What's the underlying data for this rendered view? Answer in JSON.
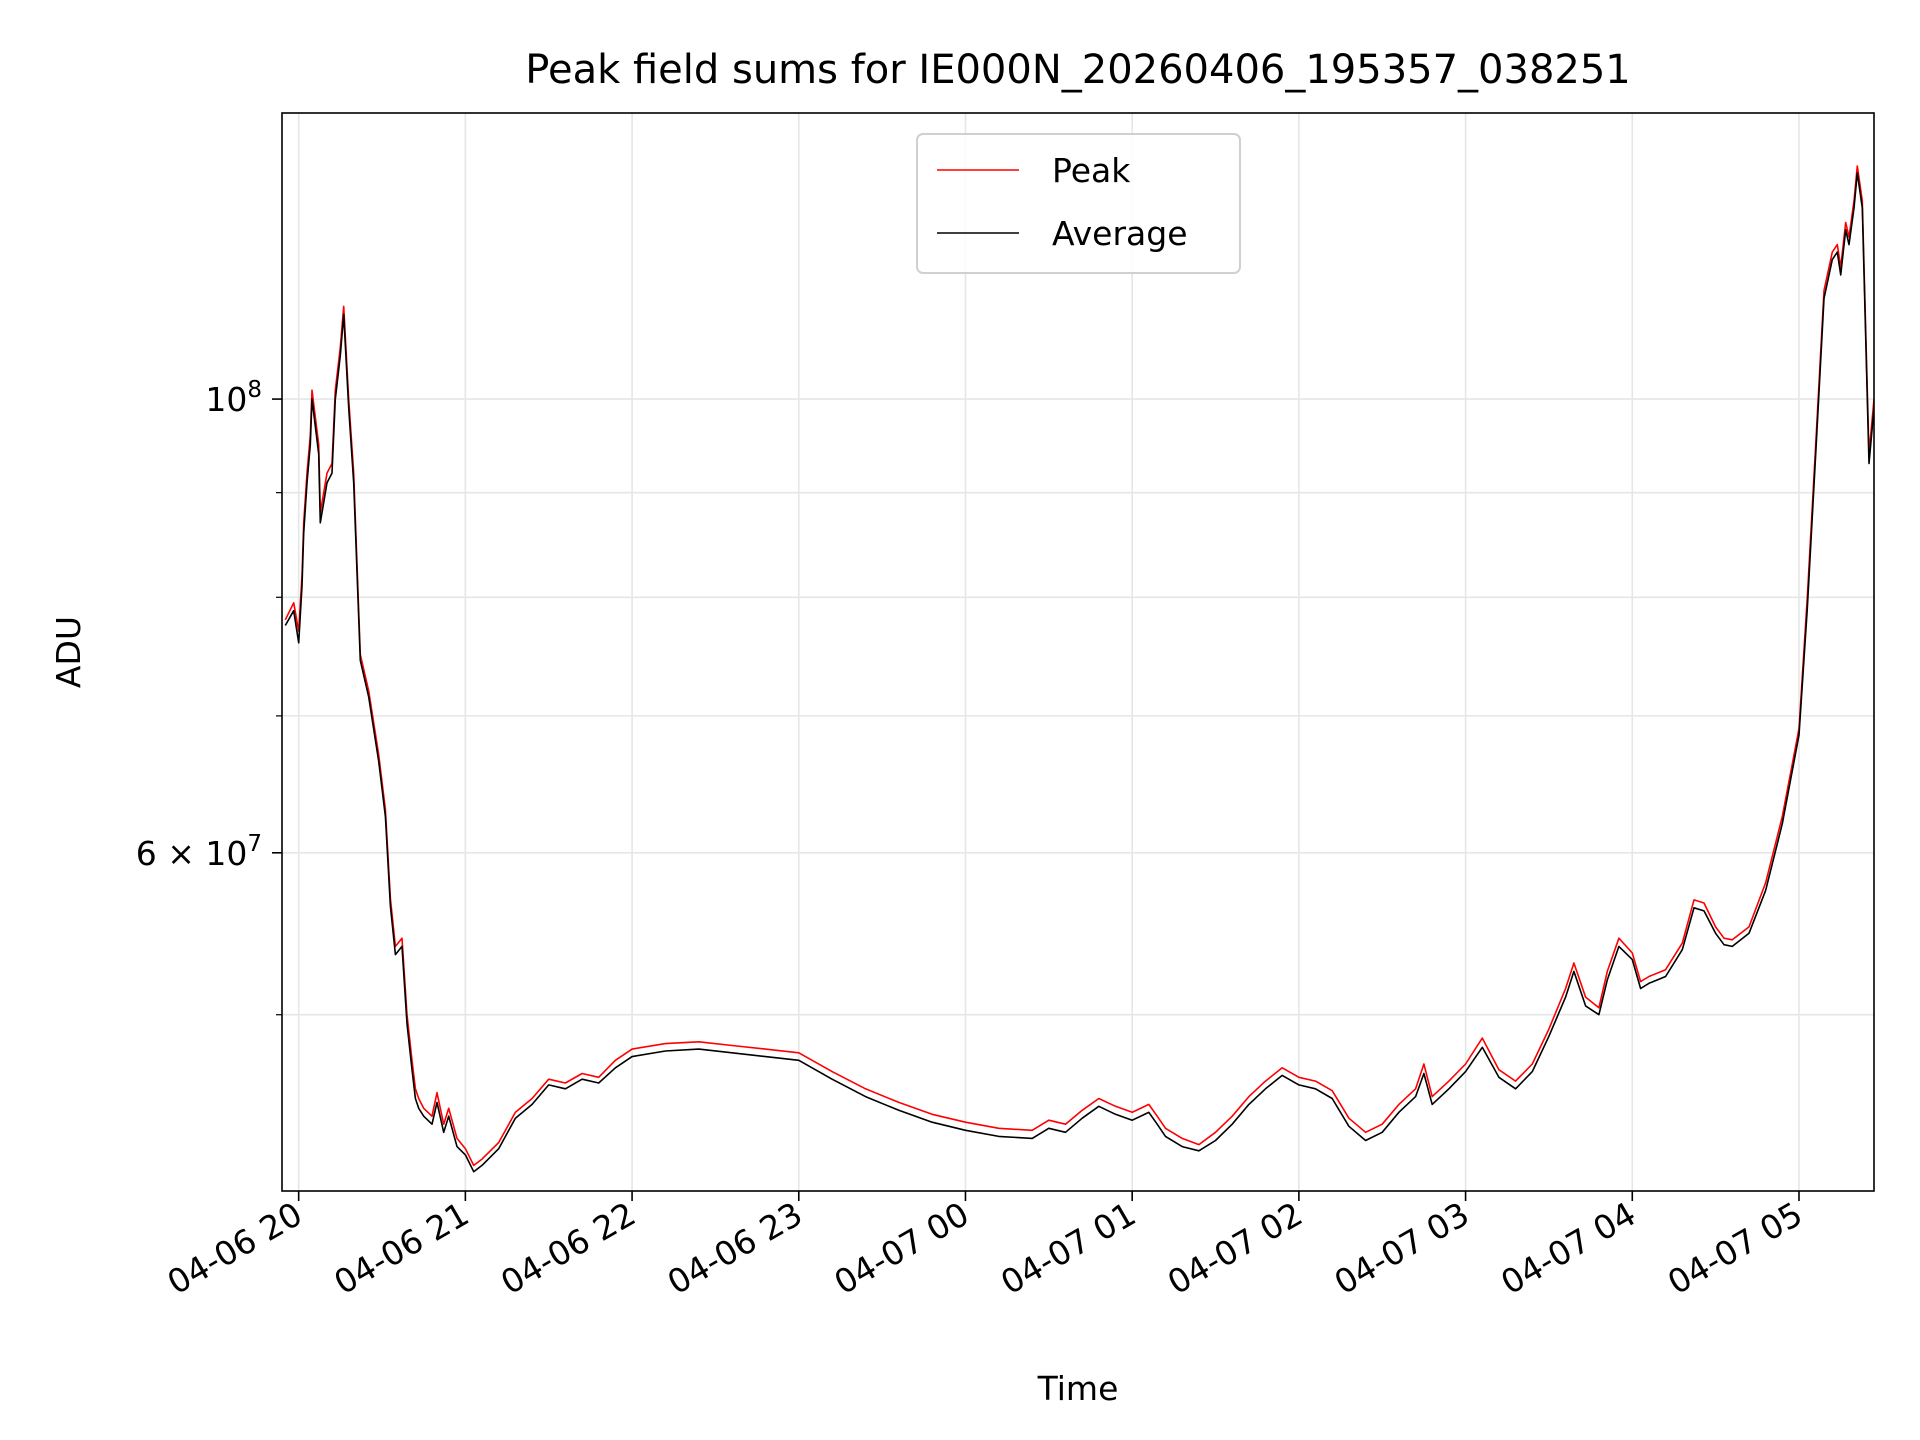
{
  "chart_data": {
    "type": "line",
    "title": "Peak field sums for IE000N_20260406_195357_038251",
    "xlabel": "Time",
    "ylabel": "ADU",
    "yscale": "log",
    "ylim": [
      41000000,
      138000000
    ],
    "xlim": [
      -0.1,
      9.45
    ],
    "x_unit": "hours since 04-06 20:00",
    "grid": true,
    "legend_position": "upper-center",
    "x_ticks": [
      {
        "value": 0,
        "label": "04-06 20"
      },
      {
        "value": 1,
        "label": "04-06 21"
      },
      {
        "value": 2,
        "label": "04-06 22"
      },
      {
        "value": 3,
        "label": "04-06 23"
      },
      {
        "value": 4,
        "label": "04-07 00"
      },
      {
        "value": 5,
        "label": "04-07 01"
      },
      {
        "value": 6,
        "label": "04-07 02"
      },
      {
        "value": 7,
        "label": "04-07 03"
      },
      {
        "value": 8,
        "label": "04-07 04"
      },
      {
        "value": 9,
        "label": "04-07 05"
      }
    ],
    "y_major_ticks": [
      {
        "value": 100000000,
        "base": "10",
        "exp": "8"
      },
      {
        "value": 60000000,
        "base": "6 × 10",
        "exp": "7"
      }
    ],
    "y_minor_ticks": [
      50000000,
      70000000,
      80000000,
      90000000
    ],
    "series": [
      {
        "name": "Peak",
        "color": "#ff0000",
        "points": [
          [
            -0.08,
            78000000
          ],
          [
            -0.03,
            79500000
          ],
          [
            0.0,
            77000000
          ],
          [
            0.02,
            82000000
          ],
          [
            0.03,
            87000000
          ],
          [
            0.05,
            92000000
          ],
          [
            0.07,
            96000000
          ],
          [
            0.08,
            101000000
          ],
          [
            0.1,
            98000000
          ],
          [
            0.12,
            95000000
          ],
          [
            0.13,
            88000000
          ],
          [
            0.15,
            90000000
          ],
          [
            0.17,
            92000000
          ],
          [
            0.2,
            93000000
          ],
          [
            0.22,
            101000000
          ],
          [
            0.25,
            106000000
          ],
          [
            0.27,
            111000000
          ],
          [
            0.3,
            100000000
          ],
          [
            0.33,
            92000000
          ],
          [
            0.37,
            75000000
          ],
          [
            0.42,
            72000000
          ],
          [
            0.48,
            67000000
          ],
          [
            0.52,
            63000000
          ],
          [
            0.55,
            57000000
          ],
          [
            0.58,
            54000000
          ],
          [
            0.62,
            54500000
          ],
          [
            0.65,
            50000000
          ],
          [
            0.68,
            47500000
          ],
          [
            0.7,
            46000000
          ],
          [
            0.72,
            45500000
          ],
          [
            0.75,
            45000000
          ],
          [
            0.8,
            44600000
          ],
          [
            0.83,
            45800000
          ],
          [
            0.87,
            44200000
          ],
          [
            0.9,
            45000000
          ],
          [
            0.95,
            43500000
          ],
          [
            1.0,
            43000000
          ],
          [
            1.05,
            42200000
          ],
          [
            1.1,
            42500000
          ],
          [
            1.2,
            43300000
          ],
          [
            1.3,
            44800000
          ],
          [
            1.4,
            45500000
          ],
          [
            1.5,
            46500000
          ],
          [
            1.6,
            46300000
          ],
          [
            1.7,
            46800000
          ],
          [
            1.8,
            46600000
          ],
          [
            1.9,
            47500000
          ],
          [
            2.0,
            48100000
          ],
          [
            2.2,
            48400000
          ],
          [
            2.4,
            48500000
          ],
          [
            2.6,
            48300000
          ],
          [
            2.8,
            48100000
          ],
          [
            3.0,
            47900000
          ],
          [
            3.2,
            46900000
          ],
          [
            3.4,
            46000000
          ],
          [
            3.6,
            45300000
          ],
          [
            3.8,
            44700000
          ],
          [
            4.0,
            44300000
          ],
          [
            4.2,
            44000000
          ],
          [
            4.4,
            43900000
          ],
          [
            4.5,
            44400000
          ],
          [
            4.6,
            44200000
          ],
          [
            4.7,
            44900000
          ],
          [
            4.8,
            45500000
          ],
          [
            4.9,
            45100000
          ],
          [
            5.0,
            44800000
          ],
          [
            5.1,
            45200000
          ],
          [
            5.15,
            44600000
          ],
          [
            5.2,
            44000000
          ],
          [
            5.3,
            43500000
          ],
          [
            5.4,
            43200000
          ],
          [
            5.5,
            43800000
          ],
          [
            5.6,
            44600000
          ],
          [
            5.7,
            45600000
          ],
          [
            5.8,
            46400000
          ],
          [
            5.9,
            47100000
          ],
          [
            6.0,
            46600000
          ],
          [
            6.1,
            46400000
          ],
          [
            6.2,
            45900000
          ],
          [
            6.3,
            44500000
          ],
          [
            6.4,
            43800000
          ],
          [
            6.5,
            44200000
          ],
          [
            6.6,
            45200000
          ],
          [
            6.7,
            46000000
          ],
          [
            6.75,
            47300000
          ],
          [
            6.8,
            45600000
          ],
          [
            6.9,
            46400000
          ],
          [
            7.0,
            47300000
          ],
          [
            7.1,
            48700000
          ],
          [
            7.2,
            47000000
          ],
          [
            7.3,
            46400000
          ],
          [
            7.4,
            47300000
          ],
          [
            7.5,
            49200000
          ],
          [
            7.6,
            51500000
          ],
          [
            7.65,
            53000000
          ],
          [
            7.72,
            51000000
          ],
          [
            7.8,
            50400000
          ],
          [
            7.85,
            52500000
          ],
          [
            7.92,
            54500000
          ],
          [
            8.0,
            53600000
          ],
          [
            8.05,
            51900000
          ],
          [
            8.1,
            52200000
          ],
          [
            8.2,
            52600000
          ],
          [
            8.3,
            54200000
          ],
          [
            8.37,
            56900000
          ],
          [
            8.43,
            56700000
          ],
          [
            8.5,
            55200000
          ],
          [
            8.55,
            54500000
          ],
          [
            8.6,
            54400000
          ],
          [
            8.7,
            55200000
          ],
          [
            8.8,
            58000000
          ],
          [
            8.9,
            62500000
          ],
          [
            9.0,
            69000000
          ],
          [
            9.05,
            80000000
          ],
          [
            9.1,
            95000000
          ],
          [
            9.15,
            113000000
          ],
          [
            9.2,
            118000000
          ],
          [
            9.23,
            119000000
          ],
          [
            9.25,
            116000000
          ],
          [
            9.28,
            122000000
          ],
          [
            9.3,
            120000000
          ],
          [
            9.33,
            125000000
          ],
          [
            9.35,
            130000000
          ],
          [
            9.38,
            125000000
          ],
          [
            9.42,
            94000000
          ],
          [
            9.45,
            100000000
          ]
        ]
      },
      {
        "name": "Average",
        "color": "#000000",
        "points": [
          [
            -0.08,
            77500000
          ],
          [
            -0.03,
            78800000
          ],
          [
            0.0,
            76000000
          ],
          [
            0.02,
            81000000
          ],
          [
            0.03,
            86000000
          ],
          [
            0.05,
            91000000
          ],
          [
            0.07,
            95000000
          ],
          [
            0.08,
            100000000
          ],
          [
            0.1,
            97000000
          ],
          [
            0.12,
            94000000
          ],
          [
            0.13,
            87000000
          ],
          [
            0.15,
            89000000
          ],
          [
            0.17,
            91000000
          ],
          [
            0.2,
            92000000
          ],
          [
            0.22,
            100000000
          ],
          [
            0.25,
            105000000
          ],
          [
            0.27,
            110000000
          ],
          [
            0.3,
            99000000
          ],
          [
            0.33,
            91000000
          ],
          [
            0.37,
            74500000
          ],
          [
            0.42,
            71500000
          ],
          [
            0.48,
            66500000
          ],
          [
            0.52,
            62500000
          ],
          [
            0.55,
            56500000
          ],
          [
            0.58,
            53500000
          ],
          [
            0.62,
            54000000
          ],
          [
            0.65,
            49500000
          ],
          [
            0.68,
            47000000
          ],
          [
            0.7,
            45500000
          ],
          [
            0.72,
            45000000
          ],
          [
            0.75,
            44600000
          ],
          [
            0.8,
            44200000
          ],
          [
            0.83,
            45300000
          ],
          [
            0.87,
            43800000
          ],
          [
            0.9,
            44600000
          ],
          [
            0.95,
            43100000
          ],
          [
            1.0,
            42700000
          ],
          [
            1.05,
            41900000
          ],
          [
            1.1,
            42200000
          ],
          [
            1.2,
            43000000
          ],
          [
            1.3,
            44500000
          ],
          [
            1.4,
            45200000
          ],
          [
            1.5,
            46200000
          ],
          [
            1.6,
            46000000
          ],
          [
            1.7,
            46500000
          ],
          [
            1.8,
            46300000
          ],
          [
            1.9,
            47100000
          ],
          [
            2.0,
            47700000
          ],
          [
            2.2,
            48000000
          ],
          [
            2.4,
            48100000
          ],
          [
            2.6,
            47900000
          ],
          [
            2.8,
            47700000
          ],
          [
            3.0,
            47500000
          ],
          [
            3.2,
            46500000
          ],
          [
            3.4,
            45600000
          ],
          [
            3.6,
            44900000
          ],
          [
            3.8,
            44300000
          ],
          [
            4.0,
            43900000
          ],
          [
            4.2,
            43600000
          ],
          [
            4.4,
            43500000
          ],
          [
            4.5,
            44000000
          ],
          [
            4.6,
            43800000
          ],
          [
            4.7,
            44500000
          ],
          [
            4.8,
            45100000
          ],
          [
            4.9,
            44700000
          ],
          [
            5.0,
            44400000
          ],
          [
            5.1,
            44800000
          ],
          [
            5.15,
            44200000
          ],
          [
            5.2,
            43600000
          ],
          [
            5.3,
            43100000
          ],
          [
            5.4,
            42900000
          ],
          [
            5.5,
            43400000
          ],
          [
            5.6,
            44200000
          ],
          [
            5.7,
            45200000
          ],
          [
            5.8,
            46000000
          ],
          [
            5.9,
            46700000
          ],
          [
            6.0,
            46200000
          ],
          [
            6.1,
            46000000
          ],
          [
            6.2,
            45500000
          ],
          [
            6.3,
            44100000
          ],
          [
            6.4,
            43400000
          ],
          [
            6.5,
            43800000
          ],
          [
            6.6,
            44800000
          ],
          [
            6.7,
            45600000
          ],
          [
            6.75,
            46800000
          ],
          [
            6.8,
            45200000
          ],
          [
            6.9,
            46000000
          ],
          [
            7.0,
            46900000
          ],
          [
            7.1,
            48200000
          ],
          [
            7.2,
            46600000
          ],
          [
            7.3,
            46000000
          ],
          [
            7.4,
            46900000
          ],
          [
            7.5,
            48800000
          ],
          [
            7.6,
            51000000
          ],
          [
            7.65,
            52500000
          ],
          [
            7.72,
            50500000
          ],
          [
            7.8,
            50000000
          ],
          [
            7.85,
            52000000
          ],
          [
            7.92,
            54000000
          ],
          [
            8.0,
            53200000
          ],
          [
            8.05,
            51500000
          ],
          [
            8.1,
            51800000
          ],
          [
            8.2,
            52200000
          ],
          [
            8.3,
            53800000
          ],
          [
            8.37,
            56400000
          ],
          [
            8.43,
            56200000
          ],
          [
            8.5,
            54800000
          ],
          [
            8.55,
            54100000
          ],
          [
            8.6,
            54000000
          ],
          [
            8.7,
            54800000
          ],
          [
            8.8,
            57500000
          ],
          [
            8.9,
            62000000
          ],
          [
            9.0,
            68500000
          ],
          [
            9.05,
            79000000
          ],
          [
            9.1,
            94000000
          ],
          [
            9.15,
            112000000
          ],
          [
            9.2,
            117000000
          ],
          [
            9.23,
            118000000
          ],
          [
            9.25,
            115000000
          ],
          [
            9.28,
            121000000
          ],
          [
            9.3,
            119000000
          ],
          [
            9.33,
            124000000
          ],
          [
            9.35,
            129000000
          ],
          [
            9.38,
            124000000
          ],
          [
            9.42,
            93000000
          ],
          [
            9.45,
            99000000
          ]
        ]
      }
    ]
  }
}
